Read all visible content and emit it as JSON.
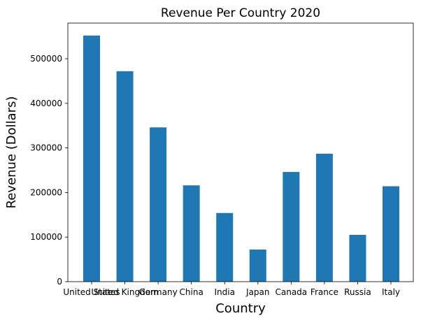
{
  "chart_data": {
    "type": "bar",
    "title": "Revenue Per Country 2020",
    "xlabel": "Country",
    "ylabel": "Revenue (Dollars)",
    "categories": [
      "United States",
      "United Kingdom",
      "Germany",
      "China",
      "India",
      "Japan",
      "Canada",
      "France",
      "Russia",
      "Italy"
    ],
    "values": [
      552000,
      472000,
      346000,
      216000,
      154000,
      72000,
      246000,
      287000,
      105000,
      214000
    ],
    "ylim": [
      0,
      580000
    ],
    "yticks": [
      0,
      100000,
      200000,
      300000,
      400000,
      500000
    ],
    "bar_color": "#1f77b4",
    "grid": false,
    "legend": false
  }
}
